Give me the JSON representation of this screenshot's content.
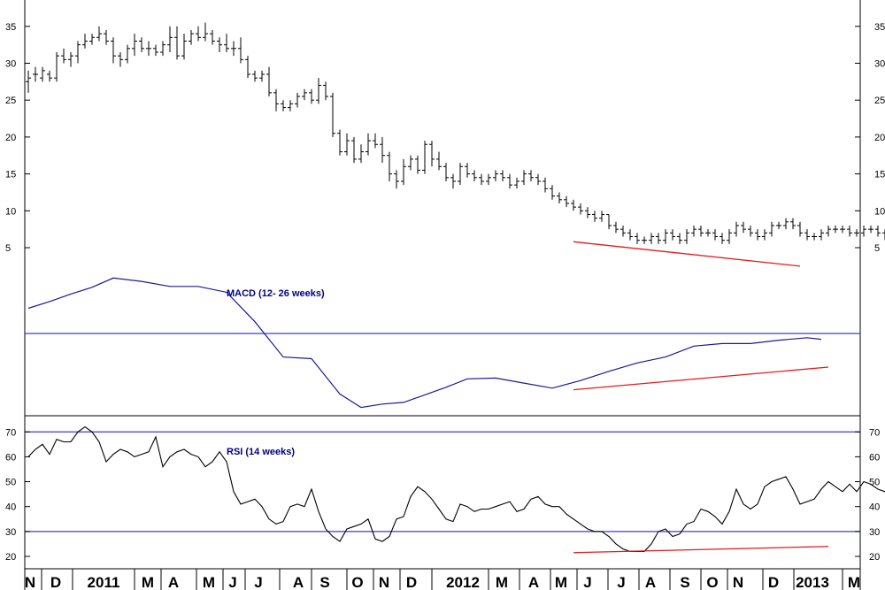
{
  "colors": {
    "price": "#000000",
    "macd": "#1a1a99",
    "rsi": "#000000",
    "reference": "#3b3bdf",
    "trendline": "#e31b1b",
    "panel_label": "#000080",
    "axis": "#000000"
  },
  "chart_data": [
    {
      "type": "ohlc",
      "panel": "price",
      "xlabel": "",
      "ylabel": "",
      "yticks": [
        5,
        10,
        15,
        20,
        25,
        30,
        35
      ],
      "ylim": [
        0,
        36.5
      ],
      "x_categories": [
        "N",
        "D",
        "2011",
        "M",
        "A",
        "M",
        "J",
        "J",
        "A",
        "S",
        "O",
        "N",
        "D",
        "2012",
        "M",
        "A",
        "M",
        "J",
        "J",
        "A",
        "S",
        "O",
        "N",
        "D",
        "2013",
        "M"
      ],
      "points": [
        [
          27.5,
          29,
          26,
          28
        ],
        [
          28.5,
          29.5,
          27.5,
          28.5
        ],
        [
          28,
          29.5,
          27.5,
          29
        ],
        [
          28.5,
          29,
          27.5,
          28
        ],
        [
          28,
          31.5,
          27.5,
          31
        ],
        [
          31,
          32,
          30,
          30.5
        ],
        [
          30.5,
          31.5,
          29.5,
          31
        ],
        [
          31,
          33,
          30,
          32.5
        ],
        [
          32.5,
          34,
          32,
          33
        ],
        [
          33,
          34,
          32.5,
          33.5
        ],
        [
          33.5,
          35,
          33,
          34
        ],
        [
          34,
          34.5,
          32.5,
          33
        ],
        [
          33,
          33.5,
          30,
          31
        ],
        [
          31,
          31.5,
          29.5,
          30.5
        ],
        [
          30.5,
          32.5,
          30,
          32
        ],
        [
          32,
          34,
          31,
          33
        ],
        [
          33,
          33.5,
          31.5,
          32
        ],
        [
          32,
          33,
          31,
          32
        ],
        [
          32,
          32.5,
          31,
          31.5
        ],
        [
          31.5,
          33,
          31,
          32.5
        ],
        [
          32.5,
          35,
          31.5,
          33.5
        ],
        [
          33.5,
          35,
          30.5,
          31
        ],
        [
          31,
          34,
          30.5,
          33
        ],
        [
          33,
          34.5,
          32.5,
          34
        ],
        [
          34,
          35,
          33,
          33.5
        ],
        [
          33.5,
          35.5,
          33,
          34
        ],
        [
          34,
          34.5,
          32.5,
          33
        ],
        [
          33,
          33.5,
          31.5,
          32.5
        ],
        [
          32.5,
          34,
          31.5,
          32
        ],
        [
          32,
          33,
          31,
          32
        ],
        [
          32,
          33.5,
          30,
          30.5
        ],
        [
          30.5,
          31,
          28,
          28.5
        ],
        [
          28.5,
          29,
          27.5,
          28
        ],
        [
          28,
          29,
          27.5,
          28.5
        ],
        [
          28.5,
          29.5,
          25.5,
          26
        ],
        [
          26,
          26.5,
          23.5,
          24.5
        ],
        [
          24.5,
          25,
          23.5,
          24
        ],
        [
          24,
          25,
          23.5,
          24.5
        ],
        [
          24.5,
          26,
          24,
          25.5
        ],
        [
          25.5,
          26.5,
          25,
          26
        ],
        [
          26,
          26.5,
          24.5,
          25
        ],
        [
          25,
          28,
          24.5,
          27
        ],
        [
          27,
          27.5,
          25,
          25.5
        ],
        [
          25.5,
          26,
          20,
          20.5
        ],
        [
          20.5,
          21,
          17.5,
          18
        ],
        [
          18,
          20.5,
          17.5,
          19.5
        ],
        [
          19.5,
          20,
          16.5,
          17
        ],
        [
          17,
          19,
          16.5,
          18
        ],
        [
          18,
          20.5,
          17.5,
          19.5
        ],
        [
          19.5,
          20.5,
          18.5,
          19
        ],
        [
          19,
          20,
          16.5,
          17.5
        ],
        [
          17.5,
          18,
          14,
          15
        ],
        [
          15,
          15.5,
          13,
          14
        ],
        [
          14,
          17,
          13.5,
          16
        ],
        [
          16,
          17.5,
          15.5,
          17
        ],
        [
          17,
          17.5,
          15,
          15.5
        ],
        [
          15.5,
          19.5,
          15,
          19
        ],
        [
          19,
          19.5,
          16,
          17
        ],
        [
          17,
          18,
          15.5,
          16
        ],
        [
          16,
          16.5,
          14,
          14.5
        ],
        [
          14.5,
          15,
          13,
          14
        ],
        [
          14,
          16.5,
          13.5,
          16
        ],
        [
          16,
          16.5,
          14.5,
          15
        ],
        [
          15,
          15.5,
          14,
          14.5
        ],
        [
          14.5,
          15,
          13.5,
          14
        ],
        [
          14,
          15,
          13.5,
          14.5
        ],
        [
          14.5,
          15.5,
          14,
          15
        ],
        [
          15,
          15.5,
          14,
          14.5
        ],
        [
          14.5,
          15,
          13,
          13.5
        ],
        [
          13.5,
          14.5,
          13,
          14
        ],
        [
          14,
          15.5,
          13.5,
          15
        ],
        [
          15,
          15.5,
          14,
          14.5
        ],
        [
          14.5,
          15,
          13.5,
          14
        ],
        [
          14,
          14.5,
          12.5,
          13
        ],
        [
          13,
          13.5,
          11.5,
          12
        ],
        [
          12,
          12.5,
          11,
          11.5
        ],
        [
          11.5,
          12,
          10.5,
          11
        ],
        [
          11,
          11.5,
          10,
          10.5
        ],
        [
          10.5,
          11,
          9.5,
          10
        ],
        [
          10,
          10.5,
          9,
          9.5
        ],
        [
          9.5,
          10,
          8.5,
          9
        ],
        [
          9,
          10,
          8.5,
          9.5
        ],
        [
          9.5,
          9.5,
          7.5,
          8
        ],
        [
          8,
          8.5,
          7,
          7.5
        ],
        [
          7.5,
          8,
          6.5,
          7
        ],
        [
          7,
          7.5,
          6,
          6.5
        ],
        [
          6.5,
          7,
          5.5,
          6
        ],
        [
          6,
          6.5,
          5.5,
          6
        ],
        [
          6,
          7,
          5.5,
          6.5
        ],
        [
          6.5,
          7,
          5.5,
          6
        ],
        [
          6,
          7.5,
          5.5,
          7
        ],
        [
          7,
          7.5,
          6,
          6.5
        ],
        [
          6.5,
          7,
          5.5,
          6
        ],
        [
          6,
          7.5,
          5.5,
          7
        ],
        [
          7,
          8,
          6.5,
          7.5
        ],
        [
          7.5,
          8,
          6.5,
          7
        ],
        [
          7,
          7.5,
          6.5,
          7
        ],
        [
          7,
          7.5,
          6,
          6.5
        ],
        [
          6.5,
          7,
          5.5,
          6
        ],
        [
          6,
          7.5,
          5.5,
          7
        ],
        [
          7,
          8.5,
          6.5,
          8
        ],
        [
          8,
          8.5,
          7,
          7.5
        ],
        [
          7.5,
          8,
          6.5,
          7
        ],
        [
          7,
          7.5,
          6,
          6.5
        ],
        [
          6.5,
          7.5,
          6,
          7
        ],
        [
          7,
          8.5,
          6.5,
          8
        ],
        [
          8,
          8.5,
          7.5,
          8
        ],
        [
          8,
          9,
          7.5,
          8.5
        ],
        [
          8.5,
          9,
          7.5,
          8
        ],
        [
          8,
          8.5,
          6.5,
          7
        ],
        [
          7,
          7.5,
          6,
          6.5
        ],
        [
          6.5,
          7,
          6,
          6.5
        ],
        [
          6.5,
          7.5,
          6,
          7
        ],
        [
          7,
          8,
          6.5,
          7.5
        ],
        [
          7.5,
          8,
          7,
          7.5
        ],
        [
          7.5,
          8,
          7,
          7.5
        ],
        [
          7.5,
          8,
          6.5,
          7
        ],
        [
          7,
          7.5,
          6.5,
          7
        ],
        [
          7,
          8,
          6.5,
          7.5
        ],
        [
          7.5,
          8,
          7,
          7.5
        ],
        [
          7.5,
          8,
          6.5,
          7
        ],
        [
          7,
          7.5,
          6,
          6.5
        ],
        [
          6.5,
          7,
          5.5,
          5.8
        ]
      ],
      "trendline": {
        "x": [
          77,
          109
        ],
        "y": [
          5.8,
          2.5
        ]
      }
    },
    {
      "type": "line",
      "panel": "macd",
      "title": "MACD (12- 26 weeks)",
      "ylim": [
        -1,
        1
      ],
      "reference_y": 0,
      "series": [
        {
          "x": [
            0,
            3,
            6,
            9,
            12,
            16,
            20,
            24,
            28,
            32,
            36,
            40,
            44,
            47,
            50,
            53,
            56,
            59,
            62,
            66,
            70,
            74,
            78,
            82,
            86,
            90,
            94,
            98,
            102,
            106,
            110,
            112
          ],
          "values": [
            0.3,
            0.38,
            0.47,
            0.55,
            0.66,
            0.62,
            0.56,
            0.56,
            0.49,
            0.14,
            -0.28,
            -0.3,
            -0.72,
            -0.88,
            -0.84,
            -0.82,
            -0.73,
            -0.64,
            -0.54,
            -0.53,
            -0.59,
            -0.65,
            -0.56,
            -0.45,
            -0.35,
            -0.28,
            -0.15,
            -0.12,
            -0.12,
            -0.08,
            -0.05,
            -0.07
          ]
        }
      ],
      "trendline": {
        "x": [
          77,
          113
        ],
        "y": [
          -0.67,
          -0.4
        ]
      }
    },
    {
      "type": "line",
      "panel": "rsi",
      "title": "RSI (14 weeks)",
      "yticks": [
        20,
        30,
        40,
        50,
        60,
        70
      ],
      "ylim": [
        18,
        77
      ],
      "reference_lines": [
        30,
        70
      ],
      "series": [
        {
          "values": [
            60,
            63,
            65,
            61,
            67,
            66,
            66,
            70,
            72,
            70,
            66,
            58,
            61,
            63,
            62,
            60,
            61,
            62,
            68,
            56,
            60,
            62,
            63,
            61,
            60,
            56,
            58,
            62,
            58,
            46,
            41,
            42,
            43,
            40,
            35,
            33,
            34,
            40,
            41,
            40,
            47,
            38,
            31,
            28,
            26,
            31,
            32,
            33,
            35,
            27,
            26,
            28,
            35,
            36,
            44,
            48,
            46,
            43,
            39,
            35,
            34,
            41,
            40,
            38,
            39,
            39,
            40,
            41,
            42,
            38,
            39,
            43,
            44,
            41,
            40,
            40,
            37,
            35,
            33,
            31,
            30,
            30,
            28,
            25,
            23,
            22,
            22,
            22,
            25,
            30,
            31,
            28,
            29,
            33,
            34,
            39,
            38,
            36,
            33,
            38,
            47,
            41,
            39,
            41,
            48,
            50,
            51,
            52,
            47,
            41,
            42,
            43,
            47,
            50,
            48,
            46,
            49,
            46,
            50,
            49,
            47,
            46,
            39
          ]
        }
      ],
      "trendline": {
        "x": [
          77,
          113
        ],
        "y": [
          21.5,
          24
        ]
      }
    }
  ],
  "x_axis": {
    "labels": [
      "N",
      "D",
      "2011",
      "M",
      "A",
      "M",
      "J",
      "J",
      "A",
      "S",
      "O",
      "N",
      "D",
      "2012",
      "M",
      "A",
      "M",
      "J",
      "J",
      "A",
      "S",
      "O",
      "N",
      "D",
      "2013",
      "M"
    ]
  },
  "price_axis_labels": [
    "5",
    "10",
    "15",
    "20",
    "25",
    "30",
    "35"
  ],
  "rsi_axis_labels": [
    "20",
    "30",
    "40",
    "50",
    "60",
    "70"
  ]
}
